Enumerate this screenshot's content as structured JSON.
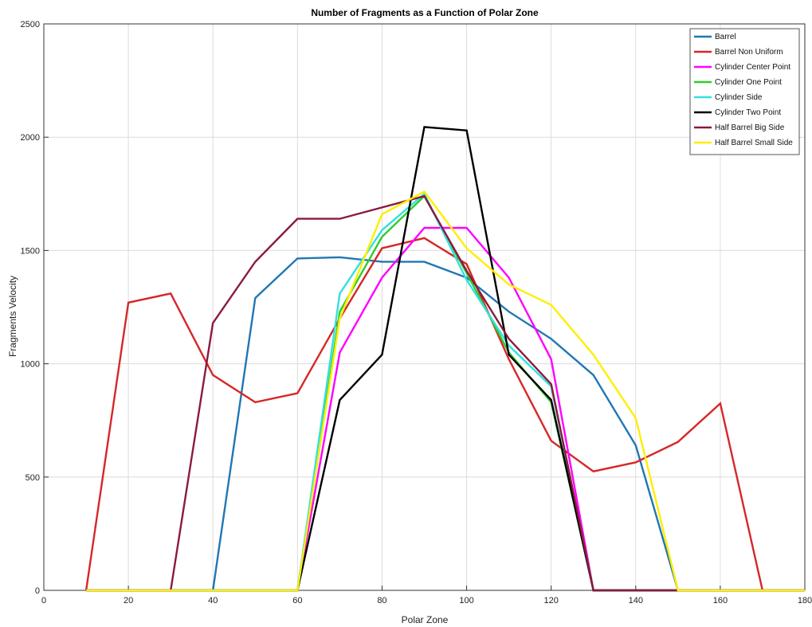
{
  "chart_data": {
    "type": "line",
    "title": "Number of Fragments as a Function of Polar Zone",
    "xlabel": "Polar Zone",
    "ylabel": "Fragments Velocity",
    "xlim": [
      0,
      180
    ],
    "ylim": [
      0,
      2500
    ],
    "xticks": [
      0,
      20,
      40,
      60,
      80,
      100,
      120,
      140,
      160,
      180
    ],
    "yticks": [
      0,
      500,
      1000,
      1500,
      2000,
      2500
    ],
    "grid": true,
    "legend_position": "top-right",
    "x": [
      10,
      20,
      30,
      40,
      50,
      60,
      70,
      80,
      90,
      100,
      110,
      120,
      130,
      140,
      150,
      160,
      170,
      180
    ],
    "series": [
      {
        "name": "Barrel",
        "color": "#1f77b4",
        "values": [
          0,
          0,
          0,
          0,
          1290,
          1465,
          1470,
          1450,
          1450,
          1380,
          1230,
          1110,
          950,
          640,
          0,
          0,
          0,
          0
        ]
      },
      {
        "name": "Barrel Non Uniform",
        "color": "#d62728",
        "values": [
          0,
          1270,
          1310,
          950,
          830,
          870,
          1200,
          1510,
          1555,
          1440,
          1020,
          660,
          525,
          565,
          655,
          825,
          0,
          0
        ]
      },
      {
        "name": "Cylinder Center Point",
        "color": "#ff00ff",
        "values": [
          0,
          0,
          0,
          0,
          0,
          0,
          1050,
          1380,
          1600,
          1600,
          1380,
          1020,
          0,
          0,
          0,
          0,
          0,
          0
        ]
      },
      {
        "name": "Cylinder One Point",
        "color": "#2ecc2e",
        "values": [
          0,
          0,
          0,
          0,
          0,
          0,
          1230,
          1560,
          1740,
          1400,
          1050,
          830,
          0,
          0,
          0,
          0,
          0,
          0
        ]
      },
      {
        "name": "Cylinder Side",
        "color": "#33e0e0",
        "values": [
          0,
          0,
          0,
          0,
          0,
          0,
          1310,
          1590,
          1750,
          1370,
          1080,
          900,
          0,
          0,
          0,
          0,
          0,
          0
        ]
      },
      {
        "name": "Cylinder Two Point",
        "color": "#000000",
        "values": [
          0,
          0,
          0,
          0,
          0,
          0,
          840,
          1040,
          2045,
          2030,
          1040,
          840,
          0,
          0,
          0,
          0,
          0,
          0
        ]
      },
      {
        "name": "Half Barrel Big Side",
        "color": "#8b1a3c",
        "values": [
          0,
          0,
          0,
          1180,
          1450,
          1640,
          1640,
          1690,
          1740,
          1410,
          1110,
          910,
          0,
          0,
          0,
          0,
          0,
          0
        ]
      },
      {
        "name": "Half Barrel Small Side",
        "color": "#ffee00",
        "values": [
          0,
          0,
          0,
          0,
          0,
          0,
          1200,
          1660,
          1760,
          1510,
          1350,
          1260,
          1040,
          760,
          0,
          0,
          0,
          0
        ]
      }
    ]
  }
}
